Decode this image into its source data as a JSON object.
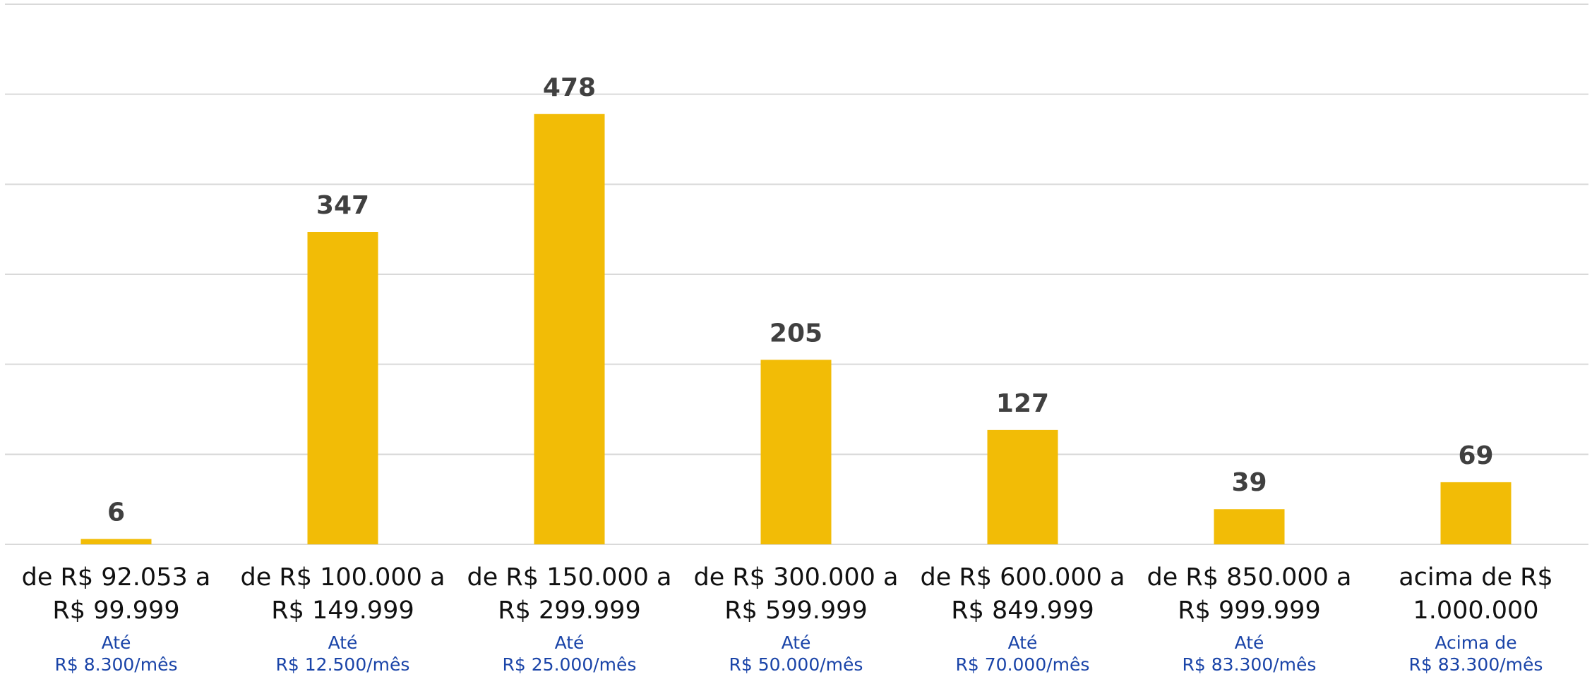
{
  "chart_data": {
    "type": "bar",
    "categories": [
      "de R$ 92.053 a\nR$ 99.999",
      "de R$ 100.000 a\nR$ 149.999",
      "de R$ 150.000 a\nR$ 299.999",
      "de R$ 300.000 a\nR$ 599.999",
      "de R$ 600.000 a\nR$ 849.999",
      "de R$ 850.000 a\nR$ 999.999",
      "acima de R$\n1.000.000"
    ],
    "sublabels": [
      "Até\nR$ 8.300/mês",
      "Até\nR$ 12.500/mês",
      "Até\nR$ 25.000/mês",
      "Até\nR$ 50.000/mês",
      "Até\nR$ 70.000/mês",
      "Até\nR$ 83.300/mês",
      "Acima de\nR$ 83.300/mês"
    ],
    "values": [
      6,
      347,
      478,
      205,
      127,
      39,
      69
    ],
    "color": "#f2bc06",
    "ylim": [
      0,
      600
    ],
    "yticks": [
      0,
      100,
      200,
      300,
      400,
      500,
      600
    ],
    "grid": true
  }
}
